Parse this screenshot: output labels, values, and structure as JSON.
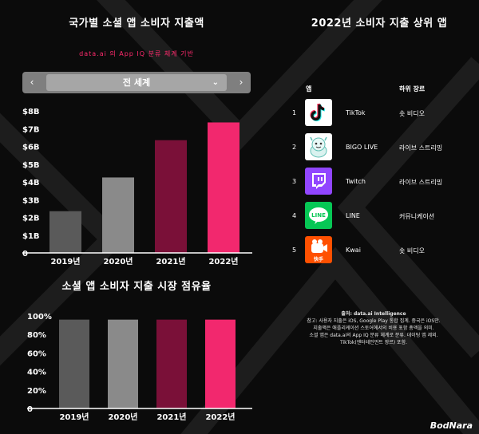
{
  "left_panel": {
    "spend_title": "국가별 소셜 앱 소비자 지출액",
    "spend_subtitle": "data.ai 의 App IQ 분류 체계 기반",
    "region": {
      "prev": "‹",
      "value": "전 세계",
      "chevron": "⌄",
      "next": "›"
    },
    "share_title": "소셜 앱 소비자 지출 시장 점유율"
  },
  "right_panel": {
    "title": "2022년 소비자 지출 상위 앱",
    "col_app": "앱",
    "col_genre": "하위 장르",
    "rows": [
      {
        "rank": "1",
        "name": "TikTok",
        "genre": "숏 비디오",
        "icon": "tiktok-icon"
      },
      {
        "rank": "2",
        "name": "BIGO LIVE",
        "genre": "라이브 스트리밍",
        "icon": "bigo-live-icon"
      },
      {
        "rank": "3",
        "name": "Twitch",
        "genre": "라이브 스트리밍",
        "icon": "twitch-icon"
      },
      {
        "rank": "4",
        "name": "LINE",
        "genre": "커뮤니케이션",
        "icon": "line-icon"
      },
      {
        "rank": "5",
        "name": "Kwai",
        "genre": "숏 비디오",
        "icon": "kwai-icon"
      }
    ],
    "line_icon_text": "LINE",
    "kwai_icon_text": "快手"
  },
  "notes": {
    "source": "출처: data.ai Intelligence",
    "line1": "참고: 사용자 지출은 iOS, Google Play 통합 집계. 중국은 iOS만.",
    "line2": "지출액은 애플리케이션 스토어에서의 비용 포함 총액을 의미.",
    "line3": "소셜 앱은 data.ai의 App IQ 분류 체계로 분류. 데이팅 앱 제외.",
    "line4": "TikTok(엔터테인먼트 장르) 포함."
  },
  "watermark": "BodNara",
  "colors": {
    "y2019": "#5a5a5a",
    "y2020": "#8a8a8a",
    "y2021": "#7a1038",
    "y2022": "#f2286e",
    "accent": "#ff2a6d"
  },
  "chart_data": [
    {
      "type": "bar",
      "categories": [
        "2019년",
        "2020년",
        "2021년",
        "2022년"
      ],
      "values": [
        2.35,
        4.25,
        6.35,
        7.35
      ],
      "y_ticks": [
        "0",
        "$1B",
        "$2B",
        "$3B",
        "$4B",
        "$5B",
        "$6B",
        "$7B",
        "$8B"
      ],
      "ylim": [
        0,
        8
      ],
      "grid": false
    },
    {
      "type": "bar",
      "categories": [
        "2019년",
        "2020년",
        "2021년",
        "2022년"
      ],
      "values": [
        96,
        96,
        96,
        96
      ],
      "y_ticks": [
        "0",
        "20%",
        "40%",
        "60%",
        "80%",
        "100%"
      ],
      "ylim": [
        0,
        100
      ],
      "grid": false
    }
  ]
}
